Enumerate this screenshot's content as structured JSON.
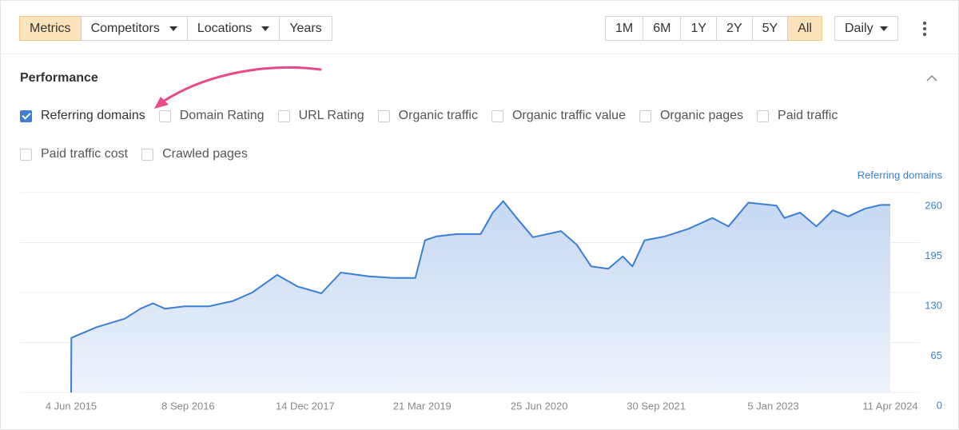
{
  "toolbar": {
    "tabs": [
      "Metrics",
      "Competitors",
      "Locations",
      "Years"
    ],
    "active_tab": 0,
    "ranges": [
      "1M",
      "6M",
      "1Y",
      "2Y",
      "5Y",
      "All"
    ],
    "active_range": 5,
    "interval": "Daily"
  },
  "section": {
    "title": "Performance",
    "metrics": [
      {
        "label": "Referring domains",
        "checked": true
      },
      {
        "label": "Domain Rating",
        "checked": false
      },
      {
        "label": "URL Rating",
        "checked": false
      },
      {
        "label": "Organic traffic",
        "checked": false
      },
      {
        "label": "Organic traffic value",
        "checked": false
      },
      {
        "label": "Organic pages",
        "checked": false
      },
      {
        "label": "Paid traffic",
        "checked": false
      },
      {
        "label": "Paid traffic cost",
        "checked": false
      },
      {
        "label": "Crawled pages",
        "checked": false
      }
    ]
  },
  "chart_data": {
    "type": "area",
    "y_axis_label": "Referring domains",
    "x": [
      "2015-06-04",
      "2015-06-05",
      "2015-09-13",
      "2016-01-02",
      "2016-03-04",
      "2016-04-22",
      "2016-06-08",
      "2016-08-25",
      "2016-11-28",
      "2017-03-04",
      "2017-05-19",
      "2017-08-25",
      "2017-11-13",
      "2018-02-16",
      "2018-05-04",
      "2018-08-22",
      "2018-11-25",
      "2019-02-22",
      "2019-04-01",
      "2019-05-16",
      "2019-08-04",
      "2019-11-07",
      "2019-12-25",
      "2020-02-04",
      "2020-03-28",
      "2020-05-31",
      "2020-09-19",
      "2020-11-21",
      "2021-01-16",
      "2021-03-25",
      "2021-05-21",
      "2021-06-28",
      "2021-08-15",
      "2021-11-03",
      "2022-02-05",
      "2022-05-10",
      "2022-07-12",
      "2022-09-29",
      "2023-01-18",
      "2023-02-18",
      "2023-04-21",
      "2023-06-24",
      "2023-08-28",
      "2023-10-28",
      "2024-01-01",
      "2024-03-04",
      "2024-04-11"
    ],
    "series": [
      {
        "name": "Referring domains",
        "color": "#3a7fd5",
        "values": [
          0,
          71,
          85,
          96,
          109,
          116,
          109,
          112,
          112,
          119,
          130,
          153,
          138,
          129,
          156,
          151,
          149,
          149,
          198,
          203,
          206,
          206,
          234,
          249,
          227,
          202,
          210,
          192,
          164,
          161,
          177,
          164,
          198,
          203,
          213,
          227,
          216,
          247,
          243,
          227,
          234,
          216,
          237,
          229,
          239,
          244,
          244
        ]
      }
    ],
    "xlim": [
      "2015-06-04",
      "2024-04-11"
    ],
    "xticks": [
      {
        "value": "2015-06-04",
        "label": "4 Jun 2015"
      },
      {
        "value": "2016-09-08",
        "label": "8 Sep 2016"
      },
      {
        "value": "2017-12-14",
        "label": "14 Dec 2017"
      },
      {
        "value": "2019-03-21",
        "label": "21 Mar 2019"
      },
      {
        "value": "2020-06-25",
        "label": "25 Jun 2020"
      },
      {
        "value": "2021-09-30",
        "label": "30 Sep 2021"
      },
      {
        "value": "2023-01-05",
        "label": "5 Jan 2023"
      },
      {
        "value": "2024-04-11",
        "label": "11 Apr 2024"
      }
    ],
    "ylim": [
      0,
      260
    ],
    "yticks": [
      0,
      65,
      130,
      195,
      260
    ],
    "grid": true
  }
}
